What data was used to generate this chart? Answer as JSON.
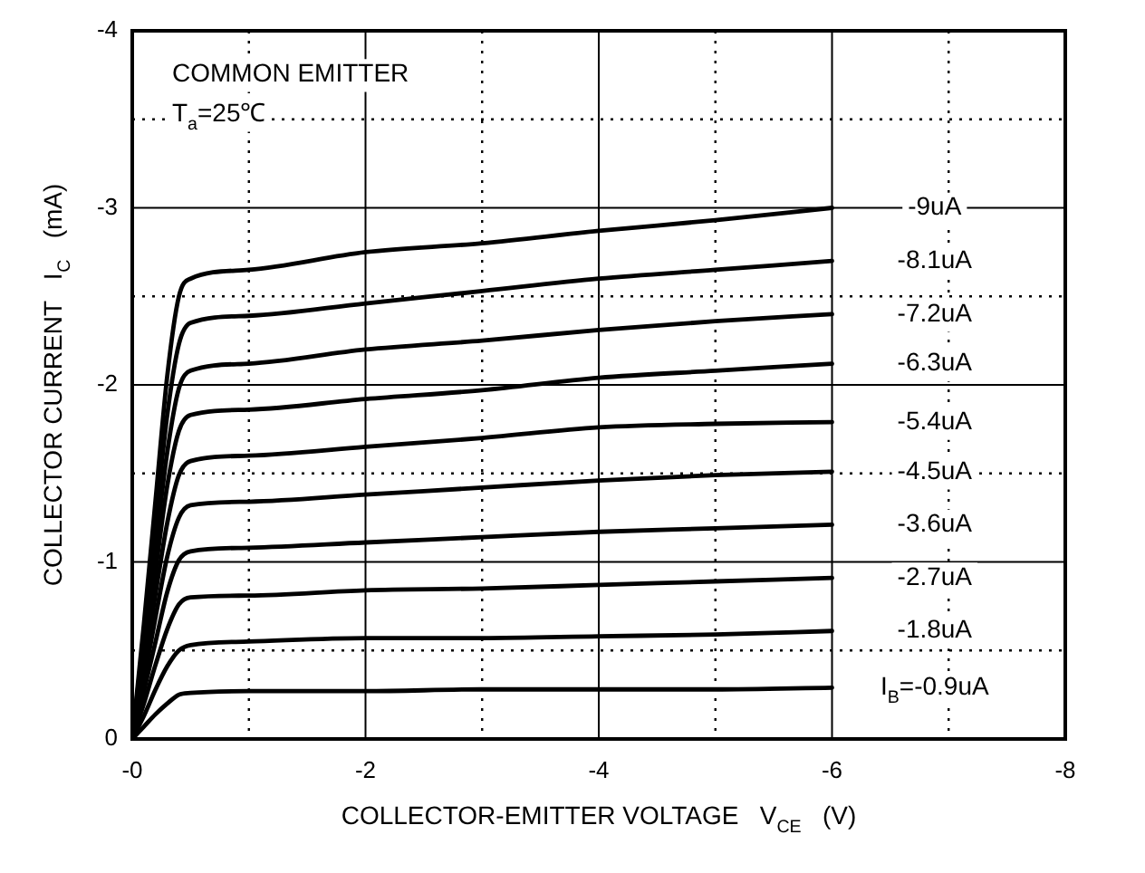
{
  "chart_data": {
    "type": "line",
    "xlabel": "COLLECTOR-EMITTER VOLTAGE   V$_{CE}$   (V)",
    "ylabel": "COLLECTOR CURRENT   I$_{C}$   (mA)",
    "annotations": [
      "COMMON EMITTER",
      "T$_{a}$=25℃"
    ],
    "x": [
      0,
      -0.1,
      -0.2,
      -0.3,
      -0.4,
      -0.5,
      -1,
      -2,
      -3,
      -4,
      -5,
      -6
    ],
    "series": [
      {
        "name": "-9uA",
        "color": "#000000",
        "values": [
          0,
          -0.65,
          -1.35,
          -2.05,
          -2.5,
          -2.6,
          -2.65,
          -2.75,
          -2.8,
          -2.87,
          -2.93,
          -3.0
        ]
      },
      {
        "name": "-8.1uA",
        "color": "#000000",
        "values": [
          0,
          -0.59,
          -1.22,
          -1.83,
          -2.23,
          -2.35,
          -2.39,
          -2.46,
          -2.53,
          -2.6,
          -2.65,
          -2.7
        ]
      },
      {
        "name": "-7.2uA",
        "color": "#000000",
        "values": [
          0,
          -0.52,
          -1.08,
          -1.62,
          -1.98,
          -2.08,
          -2.12,
          -2.2,
          -2.25,
          -2.31,
          -2.36,
          -2.4
        ]
      },
      {
        "name": "-6.3uA",
        "color": "#000000",
        "values": [
          0,
          -0.46,
          -0.95,
          -1.43,
          -1.74,
          -1.83,
          -1.86,
          -1.92,
          -1.97,
          -2.04,
          -2.08,
          -2.12
        ]
      },
      {
        "name": "-5.4uA",
        "color": "#000000",
        "values": [
          0,
          -0.39,
          -0.82,
          -1.22,
          -1.49,
          -1.57,
          -1.6,
          -1.65,
          -1.7,
          -1.76,
          -1.78,
          -1.79
        ]
      },
      {
        "name": "-4.5uA",
        "color": "#000000",
        "values": [
          0,
          -0.33,
          -0.69,
          -1.03,
          -1.25,
          -1.32,
          -1.34,
          -1.38,
          -1.42,
          -1.46,
          -1.49,
          -1.51
        ]
      },
      {
        "name": "-3.6uA",
        "color": "#000000",
        "values": [
          0,
          -0.27,
          -0.55,
          -0.83,
          -1.01,
          -1.06,
          -1.08,
          -1.11,
          -1.14,
          -1.17,
          -1.19,
          -1.21
        ]
      },
      {
        "name": "-2.7uA",
        "color": "#000000",
        "values": [
          0,
          -0.2,
          -0.42,
          -0.62,
          -0.76,
          -0.8,
          -0.81,
          -0.84,
          -0.85,
          -0.87,
          -0.89,
          -0.91
        ]
      },
      {
        "name": "-1.8uA",
        "color": "#000000",
        "values": [
          0,
          -0.13,
          -0.28,
          -0.41,
          -0.5,
          -0.53,
          -0.55,
          -0.57,
          -0.57,
          -0.58,
          -0.59,
          -0.61
        ]
      },
      {
        "name": "I$_{B}$=-0.9uA",
        "color": "#000000",
        "values": [
          0,
          -0.07,
          -0.14,
          -0.2,
          -0.25,
          -0.26,
          -0.27,
          -0.27,
          -0.28,
          -0.28,
          -0.28,
          -0.29
        ]
      }
    ],
    "xlim": [
      0,
      -8
    ],
    "xticks": [
      {
        "value": 0,
        "label": "-0"
      },
      {
        "value": -1,
        "label": null
      },
      -2,
      {
        "value": -3,
        "label": null
      },
      -4,
      {
        "value": -5,
        "label": null
      },
      -6,
      {
        "value": -7,
        "label": null
      },
      -8
    ],
    "ylim": [
      0,
      -4
    ],
    "yticks": [
      0,
      {
        "value": -0.5,
        "label": null
      },
      -1,
      {
        "value": -1.5,
        "label": null
      },
      -2,
      {
        "value": -2.5,
        "label": null
      },
      -3,
      {
        "value": -3.5,
        "label": null
      },
      -4
    ],
    "grid": true,
    "legend": false,
    "marker": "none",
    "line_style": "solid"
  }
}
